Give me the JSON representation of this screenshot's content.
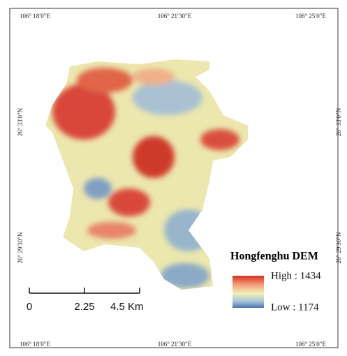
{
  "map": {
    "top_labels": [
      "106° 18′0″E",
      "106° 21′30″E",
      "106° 25′0″E"
    ],
    "bottom_labels": [
      "106° 18′0″E",
      "106° 21′30″E",
      "106° 25′0″E"
    ],
    "left_labels": [
      "26° 33′0″N",
      "26° 29′30″N"
    ],
    "right_labels": [
      "26° 33′0″N",
      "26° 29′30″N"
    ]
  },
  "legend": {
    "title": "Hongfenghu DEM",
    "high": "High : 1434",
    "low": "Low : 1174"
  },
  "scale_bar": {
    "labels": [
      "0",
      "2.25",
      "4.5 Km"
    ]
  }
}
